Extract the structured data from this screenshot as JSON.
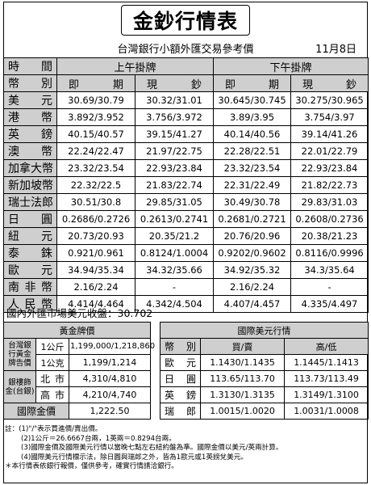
{
  "title": "金鈔行情表",
  "subtitle": "台灣銀行小額外匯交易參考價",
  "date": "11月8日",
  "header": {
    "time_label": "時 間",
    "currency_label": "幣 別",
    "am_label": "上午掛牌",
    "pm_label": "下午掛牌",
    "spot_label": "即 期",
    "cash_label": "現 鈔"
  },
  "rates": [
    {
      "currency": "美元",
      "am_spot": "30.69/30.79",
      "am_cash": "30.32/31.01",
      "pm_spot": "30.645/30.745",
      "pm_cash": "30.275/30.965"
    },
    {
      "currency": "港幣",
      "am_spot": "3.892/3.952",
      "am_cash": "3.756/3.972",
      "pm_spot": "3.89/3.95",
      "pm_cash": "3.754/3.97"
    },
    {
      "currency": "英鎊",
      "am_spot": "40.15/40.57",
      "am_cash": "39.15/41.27",
      "pm_spot": "40.14/40.56",
      "pm_cash": "39.14/41.26"
    },
    {
      "currency": "澳幣",
      "am_spot": "22.24/22.47",
      "am_cash": "21.97/22.75",
      "pm_spot": "22.28/22.51",
      "pm_cash": "22.01/22.79"
    },
    {
      "currency": "加拿大幣",
      "am_spot": "23.32/23.54",
      "am_cash": "22.93/23.84",
      "pm_spot": "23.32/23.54",
      "pm_cash": "22.93/23.84"
    },
    {
      "currency": "新加坡幣",
      "am_spot": "22.32/22.5",
      "am_cash": "21.83/22.74",
      "pm_spot": "22.31/22.49",
      "pm_cash": "21.82/22.73"
    },
    {
      "currency": "瑞士法郎",
      "am_spot": "30.51/30.8",
      "am_cash": "29.85/31.05",
      "pm_spot": "30.49/30.78",
      "pm_cash": "29.83/31.03"
    },
    {
      "currency": "日圓",
      "am_spot": "0.2686/0.2726",
      "am_cash": "0.2613/0.2741",
      "pm_spot": "0.2681/0.2721",
      "pm_cash": "0.2608/0.2736"
    },
    {
      "currency": "紐元",
      "am_spot": "20.73/20.93",
      "am_cash": "20.35/21.2",
      "pm_spot": "20.76/20.96",
      "pm_cash": "20.38/21.23"
    },
    {
      "currency": "泰銖",
      "am_spot": "0.921/0.961",
      "am_cash": "0.8124/1.0004",
      "pm_spot": "0.9202/0.9602",
      "pm_cash": "0.8116/0.9996"
    },
    {
      "currency": "歐元",
      "am_spot": "34.94/35.34",
      "am_cash": "34.32/35.66",
      "pm_spot": "34.92/35.32",
      "pm_cash": "34.3/35.64"
    },
    {
      "currency": "南非幣",
      "am_spot": "2.16/2.24",
      "am_cash": "-",
      "pm_spot": "2.16/2.24",
      "pm_cash": "-"
    },
    {
      "currency": "人民幣",
      "am_spot": "4.414/4.464",
      "am_cash": "4.342/4.504",
      "pm_spot": "4.407/4.457",
      "pm_cash": "4.335/4.497"
    }
  ],
  "domestic_index": "國內外匯市場美元收盤：30.702",
  "gold": {
    "title": "黃金牌價",
    "bot_label": "台灣銀行黃金牌告價",
    "bot_rows": [
      {
        "unit": "1公斤",
        "value": "1,199,000/1,218,860"
      },
      {
        "unit": "1公克",
        "value": "1,199/1,214"
      }
    ],
    "silver_label": "銀樓飾金(台銀)",
    "silver_rows": [
      {
        "city": "北 市",
        "value": "4,310/4,810"
      },
      {
        "city": "高 市",
        "value": "4,210/4,740"
      }
    ],
    "intl_label": "國際金價",
    "intl_value": "1,222.50"
  },
  "usd": {
    "title": "國際美元行情",
    "col_currency": "幣 別",
    "col_buysell": "買/賣",
    "col_highlow": "高/低",
    "rows": [
      {
        "currency": "歐 元",
        "buysell": "1.1430/1.1435",
        "highlow": "1.1445/1.1413"
      },
      {
        "currency": "日 圓",
        "buysell": "113.65/113.70",
        "highlow": "113.73/113.49"
      },
      {
        "currency": "英 鎊",
        "buysell": "1.3130/1.3135",
        "highlow": "1.3149/1.3100"
      },
      {
        "currency": "瑞 郎",
        "buysell": "1.0015/1.0020",
        "highlow": "1.0031/1.0008"
      }
    ]
  },
  "notes": [
    "註：(1)\"/\"表示買進價/賣出價。",
    "(2)1公斤＝26.6667台兩，1英兩＝0.8294台兩。",
    "(3)國際金價及國際美元行情以當晚七點左右紐約盤為準。國際金價以美元/英兩計算。",
    "(4)國際美元行情標示法，除日圓與瑞郎之外，皆為1歐元或1英鎊兌美元。",
    "＊本行情表依銀行報價，僅供參考，確實行情請洽銀行。"
  ]
}
